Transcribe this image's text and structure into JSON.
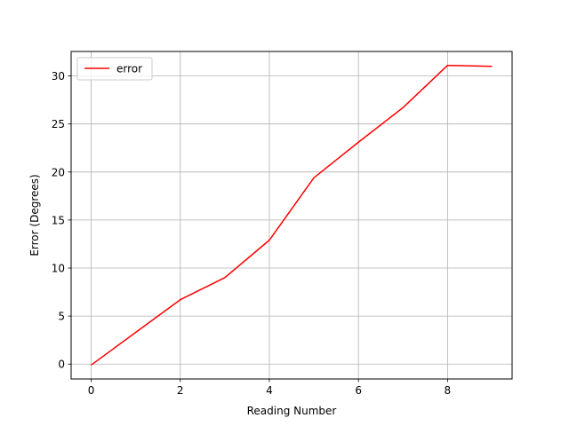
{
  "chart_data": {
    "type": "line",
    "title": "",
    "xlabel": "Reading Number",
    "ylabel": "Error (Degrees)",
    "xlim": [
      -0.45,
      9.45
    ],
    "ylim": [
      -1.55,
      32.55
    ],
    "xticks": [
      0,
      2,
      4,
      6,
      8
    ],
    "yticks": [
      0,
      5,
      10,
      15,
      20,
      25,
      30
    ],
    "grid": true,
    "legend": "upper-left",
    "series": [
      {
        "name": "error",
        "color": "#ff0000",
        "x": [
          0,
          1,
          2,
          3,
          4,
          5,
          6,
          7,
          8,
          9
        ],
        "y": [
          -0.1,
          3.3,
          6.7,
          9.0,
          12.9,
          19.4,
          23.1,
          26.7,
          31.1,
          31.0
        ]
      }
    ]
  }
}
